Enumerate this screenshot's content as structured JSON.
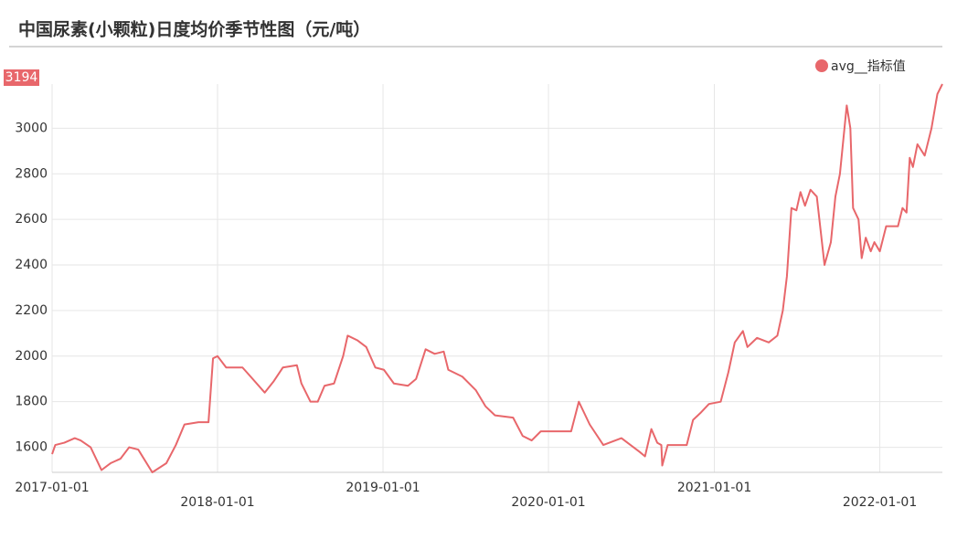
{
  "chart_data": {
    "type": "line",
    "title": "中国尿素(小颗粒)日度均价季节性图（元/吨）",
    "series": [
      {
        "name": "avg__指标值",
        "color": "#e8676b",
        "x": [
          "2017-01-01",
          "2017-01-08",
          "2017-01-28",
          "2017-02-20",
          "2017-03-05",
          "2017-03-27",
          "2017-04-20",
          "2017-05-10",
          "2017-06-01",
          "2017-06-20",
          "2017-07-10",
          "2017-08-10",
          "2017-09-10",
          "2017-10-01",
          "2017-10-20",
          "2017-11-20",
          "2017-12-12",
          "2017-12-22",
          "2018-01-01",
          "2018-01-20",
          "2018-02-25",
          "2018-03-15",
          "2018-04-15",
          "2018-05-05",
          "2018-05-25",
          "2018-06-25",
          "2018-07-05",
          "2018-07-25",
          "2018-08-10",
          "2018-08-25",
          "2018-09-15",
          "2018-10-05",
          "2018-10-15",
          "2018-11-05",
          "2018-11-25",
          "2018-12-15",
          "2019-01-03",
          "2019-01-25",
          "2019-02-25",
          "2019-03-15",
          "2019-04-05",
          "2019-04-25",
          "2019-05-15",
          "2019-05-25",
          "2019-06-25",
          "2019-07-25",
          "2019-08-15",
          "2019-09-05",
          "2019-10-15",
          "2019-11-05",
          "2019-11-25",
          "2019-12-15",
          "2020-01-01",
          "2020-02-20",
          "2020-03-08",
          "2020-04-01",
          "2020-05-01",
          "2020-06-10",
          "2020-07-20",
          "2020-08-01",
          "2020-08-15",
          "2020-08-28",
          "2020-09-06",
          "2020-09-08",
          "2020-09-20",
          "2020-11-01",
          "2020-11-15",
          "2020-12-01",
          "2020-12-20",
          "2021-01-15",
          "2021-02-01",
          "2021-02-15",
          "2021-03-05",
          "2021-03-15",
          "2021-04-05",
          "2021-05-01",
          "2021-05-20",
          "2021-06-01",
          "2021-06-10",
          "2021-06-20",
          "2021-07-01",
          "2021-07-10",
          "2021-07-20",
          "2021-08-01",
          "2021-08-15",
          "2021-09-01",
          "2021-09-15",
          "2021-09-25",
          "2021-10-05",
          "2021-10-20",
          "2021-10-28",
          "2021-11-03",
          "2021-11-15",
          "2021-11-22",
          "2021-12-01",
          "2021-12-12",
          "2021-12-20",
          "2022-01-01",
          "2022-01-15",
          "2022-02-10",
          "2022-02-20",
          "2022-03-01",
          "2022-03-08",
          "2022-03-15",
          "2022-03-25",
          "2022-04-10",
          "2022-04-25",
          "2022-05-08",
          "2022-05-19"
        ],
        "values": [
          1570,
          1610,
          1620,
          1640,
          1630,
          1600,
          1500,
          1530,
          1550,
          1600,
          1590,
          1490,
          1530,
          1610,
          1700,
          1710,
          1710,
          1990,
          2000,
          1950,
          1950,
          1910,
          1840,
          1890,
          1950,
          1960,
          1880,
          1800,
          1800,
          1870,
          1880,
          2000,
          2090,
          2070,
          2040,
          1950,
          1940,
          1880,
          1870,
          1900,
          2030,
          2010,
          2020,
          1940,
          1910,
          1850,
          1780,
          1740,
          1730,
          1650,
          1630,
          1670,
          1670,
          1670,
          1800,
          1700,
          1610,
          1640,
          1580,
          1560,
          1680,
          1620,
          1610,
          1520,
          1610,
          1610,
          1720,
          1750,
          1790,
          1800,
          1930,
          2060,
          2110,
          2040,
          2080,
          2060,
          2090,
          2200,
          2350,
          2650,
          2640,
          2720,
          2660,
          2730,
          2700,
          2400,
          2500,
          2700,
          2800,
          3100,
          3000,
          2650,
          2600,
          2430,
          2520,
          2460,
          2500,
          2460,
          2570,
          2570,
          2650,
          2630,
          2870,
          2830,
          2930,
          2880,
          3000,
          3150,
          3194
        ]
      }
    ],
    "xlim": [
      "2017-01-01",
      "2022-05-19"
    ],
    "xticks": [
      "2017-01-01",
      "2018-01-01",
      "2019-01-01",
      "2020-01-01",
      "2021-01-01",
      "2022-01-01"
    ],
    "ylim": [
      1490,
      3194
    ],
    "yticks": [
      1600,
      1800,
      2000,
      2200,
      2400,
      2600,
      2800,
      3000
    ],
    "grid": true,
    "legend": "top-right"
  }
}
